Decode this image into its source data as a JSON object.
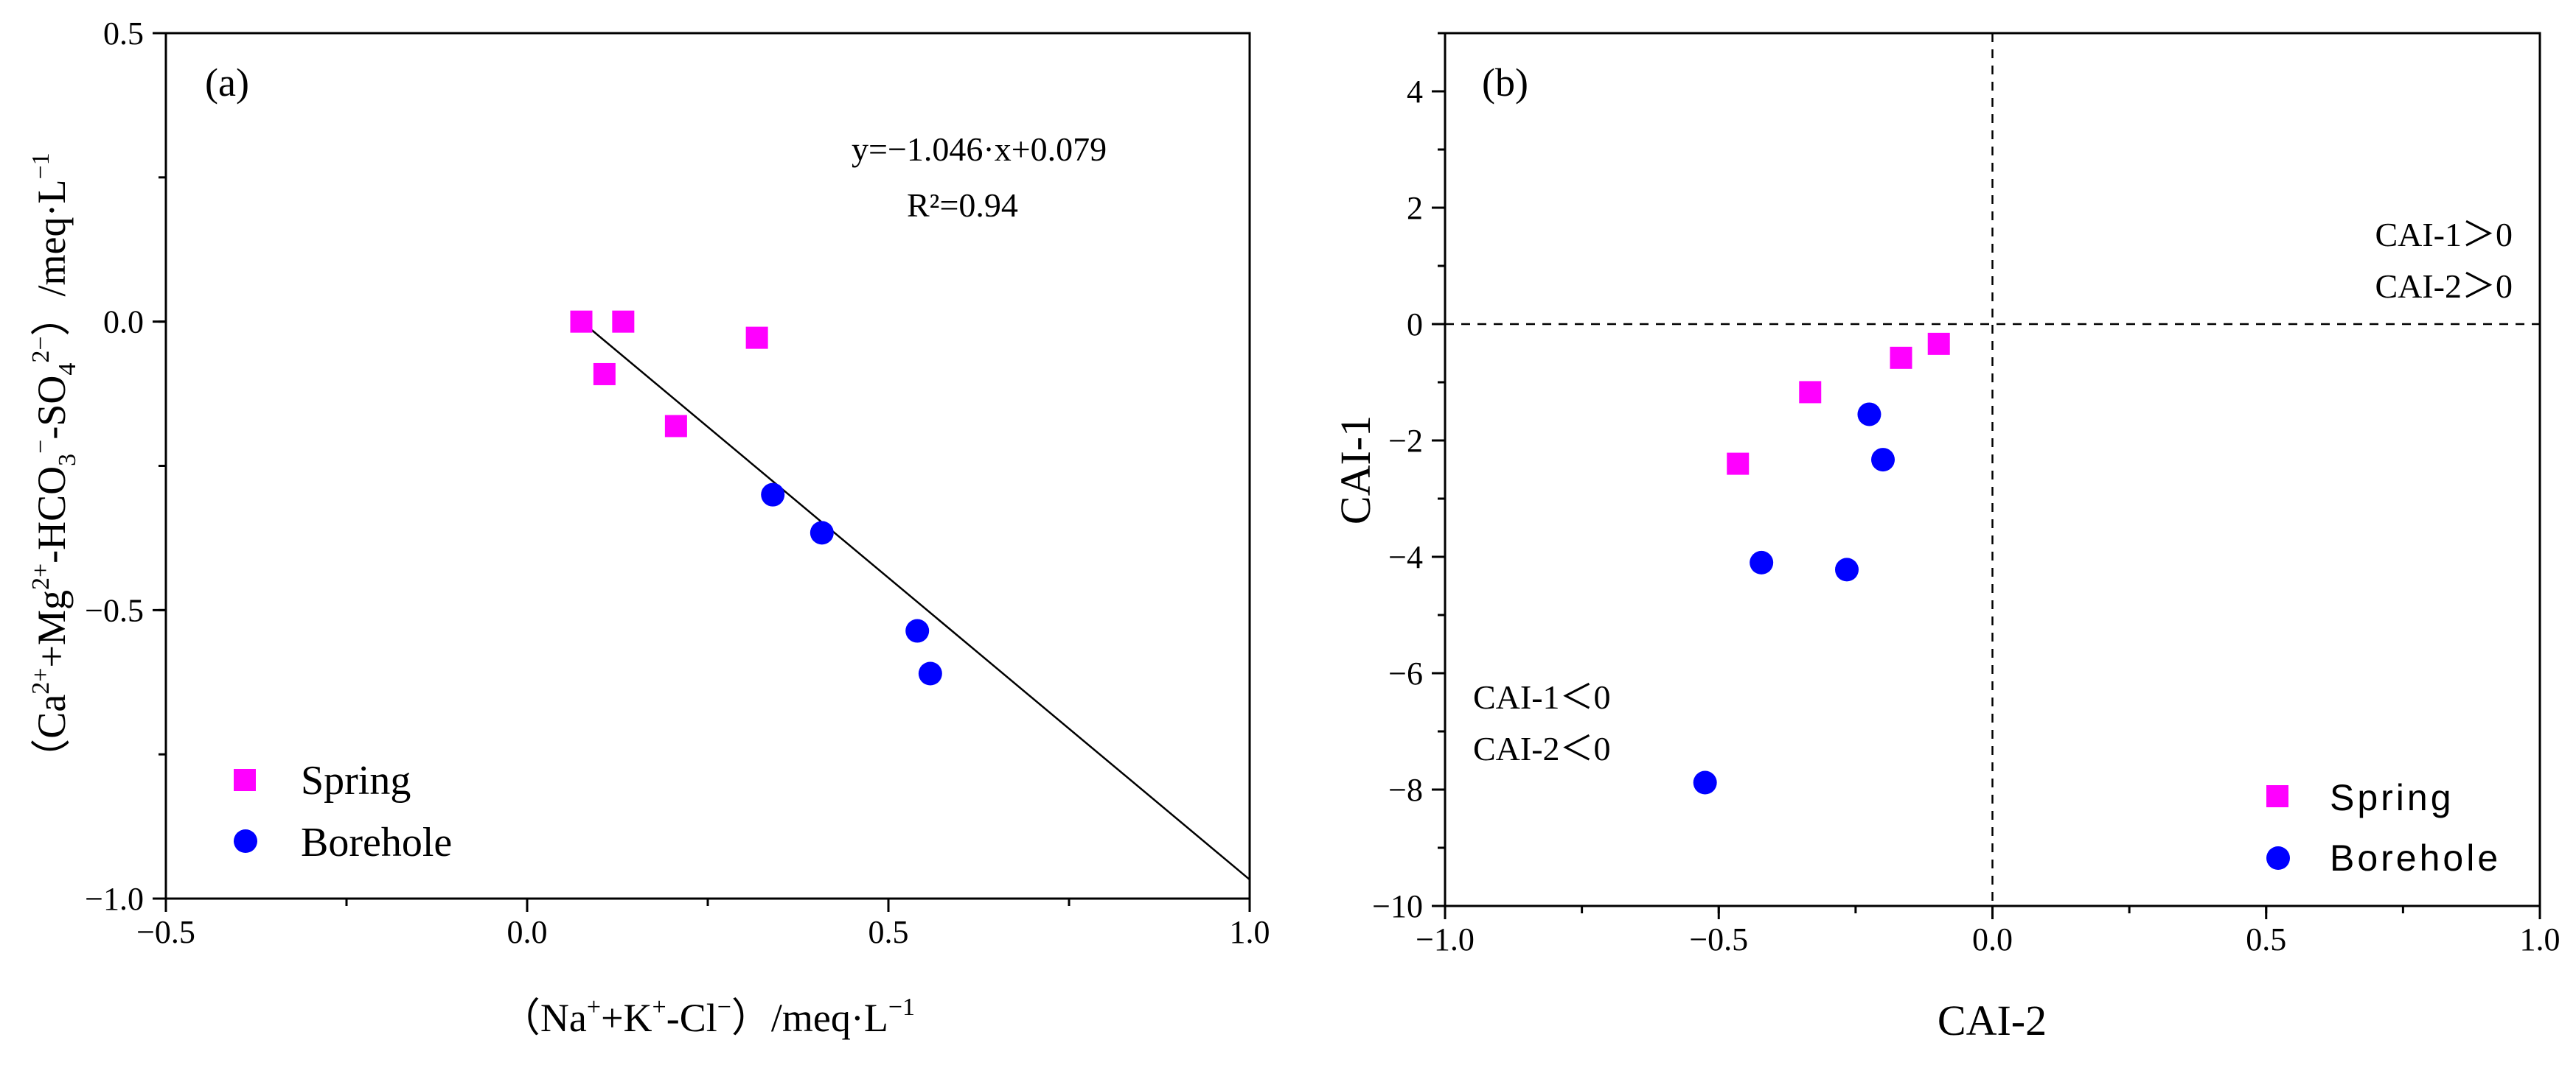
{
  "colors": {
    "spring": "#ff00ff",
    "borehole": "#0000ff",
    "axis": "#000000"
  },
  "chart_data": [
    {
      "panel": "(a)",
      "type": "scatter",
      "xlabel": "（Na⁺+K⁺-Cl⁻）/meq·L⁻¹",
      "ylabel": "（Ca²⁺+Mg²⁺-HCO₃⁻-SO₄²⁻）/meq·L⁻¹",
      "xlim": [
        -0.5,
        1.0
      ],
      "ylim": [
        -1.0,
        0.5
      ],
      "xticks": [
        "−0.5",
        "0.0",
        "0.5",
        "1.0"
      ],
      "yticks": [
        "−1.0",
        "−0.5",
        "0.0",
        "0.5"
      ],
      "xtick_values": [
        -0.5,
        0.0,
        0.5,
        1.0
      ],
      "ytick_values": [
        -1.0,
        -0.5,
        0.0,
        0.5
      ],
      "series": [
        {
          "name": "Spring",
          "marker": "square",
          "color": "#ff00ff",
          "points": [
            [
              0.075,
              0.0
            ],
            [
              0.133,
              0.0
            ],
            [
              0.107,
              -0.091
            ],
            [
              0.206,
              -0.181
            ],
            [
              0.318,
              -0.028
            ]
          ]
        },
        {
          "name": "Borehole",
          "marker": "circle",
          "color": "#0000ff",
          "points": [
            [
              0.34,
              -0.3
            ],
            [
              0.408,
              -0.366
            ],
            [
              0.54,
              -0.536
            ],
            [
              0.558,
              -0.61
            ]
          ]
        }
      ],
      "fit_line": {
        "slope": -1.046,
        "intercept": 0.079,
        "x_range": [
          0.075,
          1.0
        ]
      },
      "annotations": {
        "equation": "y=−1.046·x+0.079",
        "r2": "R²=0.94"
      },
      "legend": [
        "Spring",
        "Borehole"
      ],
      "legend_position": "lower-left"
    },
    {
      "panel": "(b)",
      "type": "scatter",
      "xlabel": "CAI-2",
      "ylabel": "CAI-1",
      "xlim": [
        -1.0,
        1.0
      ],
      "ylim": [
        -10,
        5
      ],
      "xticks": [
        "−1.0",
        "−0.5",
        "0.0",
        "0.5",
        "1.0"
      ],
      "yticks": [
        "−10",
        "−8",
        "−6",
        "−4",
        "−2",
        "0",
        "2",
        "4"
      ],
      "xtick_values": [
        -1.0,
        -0.5,
        0.0,
        0.5,
        1.0
      ],
      "ytick_values": [
        -10,
        -8,
        -6,
        -4,
        -2,
        0,
        2,
        4
      ],
      "series": [
        {
          "name": "Spring",
          "marker": "square",
          "color": "#ff00ff",
          "points": [
            [
              -0.465,
              -2.4
            ],
            [
              -0.333,
              -1.17
            ],
            [
              -0.167,
              -0.58
            ],
            [
              -0.098,
              -0.34
            ]
          ]
        },
        {
          "name": "Borehole",
          "marker": "circle",
          "color": "#0000ff",
          "points": [
            [
              -0.525,
              -7.88
            ],
            [
              -0.422,
              -4.1
            ],
            [
              -0.266,
              -4.22
            ],
            [
              -0.225,
              -1.55
            ],
            [
              -0.2,
              -2.33
            ]
          ]
        }
      ],
      "reference_lines": {
        "x": 0,
        "y": 0,
        "style": "dashed"
      },
      "annotations": {
        "upper_right_1": "CAI-1＞0",
        "upper_right_2": "CAI-2＞0",
        "lower_left_1": "CAI-1＜0",
        "lower_left_2": "CAI-2＜0"
      },
      "legend": [
        "Spring",
        "Borehole"
      ],
      "legend_position": "lower-right"
    }
  ]
}
